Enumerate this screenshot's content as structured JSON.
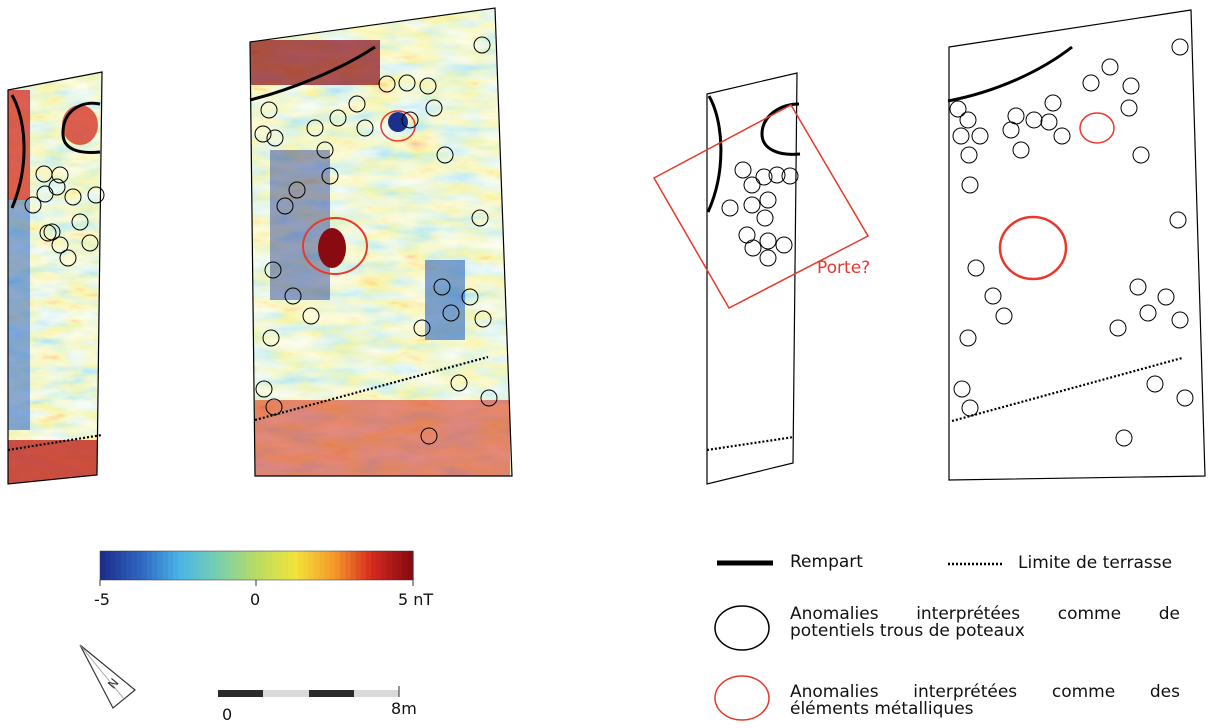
{
  "colorbar": {
    "min_label": "-5",
    "zero_label": "0",
    "max_label": "5 nT",
    "colors": [
      "#1d2f8c",
      "#2f66c2",
      "#49b4e6",
      "#77cfae",
      "#b8dc63",
      "#f1e43a",
      "#f59b2a",
      "#d42a1e",
      "#8a0a12"
    ]
  },
  "scalebar": {
    "start_label": "0",
    "end_label": "8",
    "unit": "m"
  },
  "north_arrow": {
    "letter": "N"
  },
  "interpretation": {
    "door_label": "Porte?"
  },
  "legend": {
    "rampart": "Rempart",
    "terrace": "Limite de terrasse",
    "black_circle_line1_words": [
      "Anomalies",
      "interprétées",
      "comme",
      "de"
    ],
    "black_circle_line2": "potentiels trous de poteaux",
    "red_circle_line1_words": [
      "Anomalies",
      "interprétées",
      "comme",
      "des"
    ],
    "red_circle_line2": "éléments métalliques"
  },
  "colors": {
    "rampart": "#000000",
    "metal_anomaly": "#e8392b",
    "post_hole": "#000000"
  }
}
